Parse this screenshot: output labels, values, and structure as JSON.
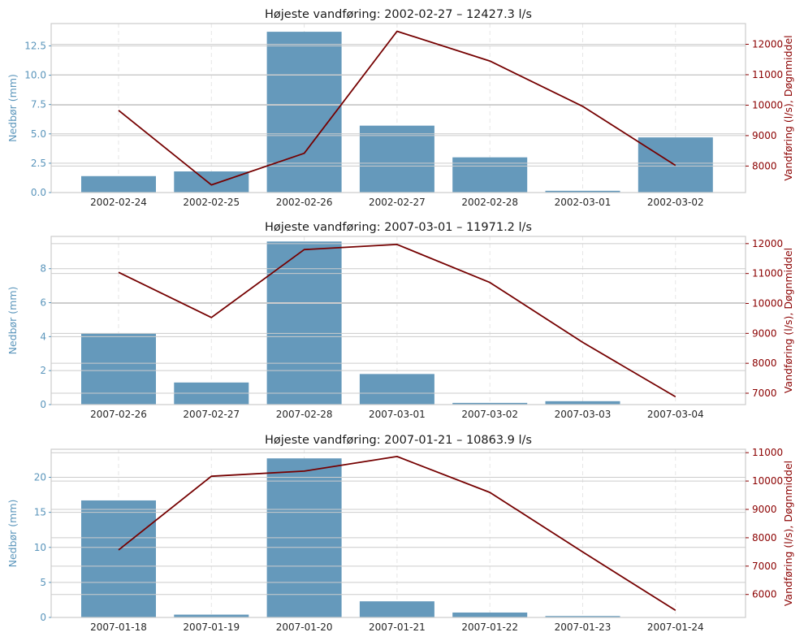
{
  "colors": {
    "bars": "#6599bb",
    "line": "#750000",
    "left_axis": "#5a95bb",
    "right_axis": "#8b0000",
    "grid": "#cccccc",
    "vgrid": "#e6e6e6",
    "spine": "#cccccc"
  },
  "chart_data": [
    {
      "type": "bar+line",
      "title": "Højeste vandføring: 2002-02-27  –  12427.3 l/s",
      "categories": [
        "2002-02-24",
        "2002-02-25",
        "2002-02-26",
        "2002-02-27",
        "2002-02-28",
        "2002-03-01",
        "2002-03-02"
      ],
      "bars": {
        "name": "Nedbør (mm)",
        "values": [
          1.4,
          1.8,
          13.7,
          5.7,
          3.0,
          0.15,
          4.7
        ]
      },
      "line": {
        "name": "Vandføring (l/s), Døgnmiddel",
        "values": [
          9830,
          7380,
          8420,
          12427.3,
          11450,
          9960,
          8020
        ]
      },
      "ylabel_left": "Nedbør (mm)",
      "ylabel_right": "Vandføring (l/s), Døgnmiddel",
      "ylim_left": [
        0,
        14.4
      ],
      "ylim_right": [
        7130,
        12680
      ],
      "yticks_left": [
        "0.0",
        "2.5",
        "5.0",
        "7.5",
        "10.0",
        "12.5"
      ],
      "yticks_right": [
        "8000",
        "9000",
        "10000",
        "11000",
        "12000"
      ],
      "grid": true
    },
    {
      "type": "bar+line",
      "title": "Højeste vandføring: 2007-03-01  –  11971.2 l/s",
      "categories": [
        "2007-02-26",
        "2007-02-27",
        "2007-02-28",
        "2007-03-01",
        "2007-03-02",
        "2007-03-03",
        "2007-03-04"
      ],
      "bars": {
        "name": "Nedbør (mm)",
        "values": [
          4.2,
          1.3,
          9.6,
          1.8,
          0.1,
          0.2,
          0.0
        ]
      },
      "line": {
        "name": "Vandføring (l/s), Døgnmiddel",
        "values": [
          11040,
          9530,
          11800,
          11971.2,
          10700,
          8700,
          6880
        ]
      },
      "ylabel_left": "Nedbør (mm)",
      "ylabel_right": "Vandføring (l/s), Døgnmiddel",
      "ylim_left": [
        0,
        9.9
      ],
      "ylim_right": [
        6620,
        12240
      ],
      "yticks_left": [
        "0",
        "2",
        "4",
        "6",
        "8"
      ],
      "yticks_right": [
        "7000",
        "8000",
        "9000",
        "10000",
        "11000",
        "12000"
      ],
      "grid": true
    },
    {
      "type": "bar+line",
      "title": "Højeste vandføring: 2007-01-21  –  10863.9 l/s",
      "categories": [
        "2007-01-18",
        "2007-01-19",
        "2007-01-20",
        "2007-01-21",
        "2007-01-22",
        "2007-01-23",
        "2007-01-24"
      ],
      "bars": {
        "name": "Nedbør (mm)",
        "values": [
          16.7,
          0.4,
          22.7,
          2.3,
          0.7,
          0.2,
          0.0
        ]
      },
      "line": {
        "name": "Vandføring (l/s), Døgnmiddel",
        "values": [
          7570,
          10170,
          10350,
          10863.9,
          9600,
          7500,
          5440
        ]
      },
      "ylabel_left": "Nedbør (mm)",
      "ylabel_right": "Vandføring (l/s), Døgnmiddel",
      "ylim_left": [
        0,
        24.0
      ],
      "ylim_right": [
        5190,
        11120
      ],
      "yticks_left": [
        "0",
        "5",
        "10",
        "15",
        "20"
      ],
      "yticks_right": [
        "6000",
        "7000",
        "8000",
        "9000",
        "10000",
        "11000"
      ],
      "grid": true
    }
  ]
}
